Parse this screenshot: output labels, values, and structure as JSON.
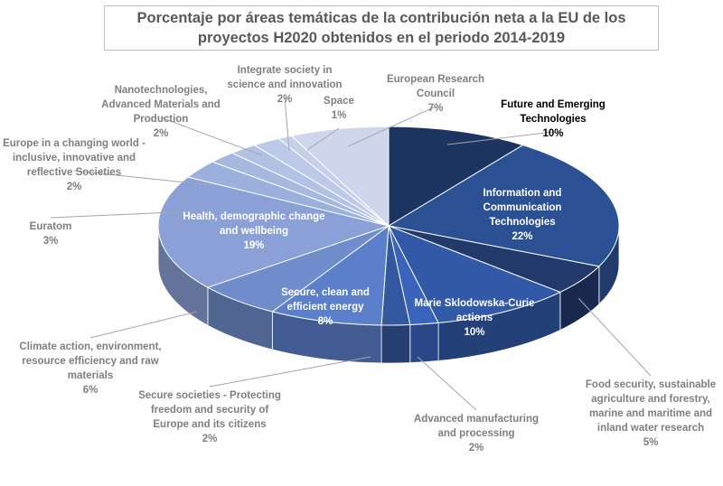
{
  "chart_data": {
    "type": "pie",
    "title": "Porcentaje por áreas temáticas de la contribución neta a la EU de los proyectos H2020 obtenidos en el periodo 2014-2019",
    "categories": [
      "Future and Emerging Technologies",
      "Information and Communication Technologies",
      "Food security, sustainable agriculture and forestry, marine and maritime and inland water research",
      "Marie Sklodowska-Curie actions",
      "Advanced manufacturing and processing",
      "Secure societies - Protecting freedom and security of Europe and its citizens",
      "Secure, clean and efficient energy",
      "Climate action, environment, resource efficiency and raw materials",
      "Health, demographic change and wellbeing",
      "Euratom",
      "Europe in a changing world - inclusive, innovative and reflective Societies",
      "Nanotechnologies, Advanced Materials and Production",
      "Integrate society in science and innovation",
      "Space",
      "European Research Council"
    ],
    "values": [
      10,
      22,
      5,
      10,
      2,
      2,
      8,
      6,
      19,
      3,
      2,
      2,
      2,
      1,
      7
    ],
    "value_labels": [
      "10%",
      "22%",
      "5%",
      "10%",
      "2%",
      "2%",
      "8%",
      "6%",
      "19%",
      "3%",
      "2%",
      "2%",
      "2%",
      "1%",
      "7%"
    ],
    "colors": [
      "#1d3461",
      "#2b5194",
      "#22396b",
      "#3159a8",
      "#3a64bb",
      "#34589f",
      "#5b7fcb",
      "#6f8ccb",
      "#8aa0d6",
      "#9bb0dd",
      "#a6b7e0",
      "#b2c1e4",
      "#bdc9e8",
      "#c6d0ea",
      "#cfd6ec"
    ]
  }
}
